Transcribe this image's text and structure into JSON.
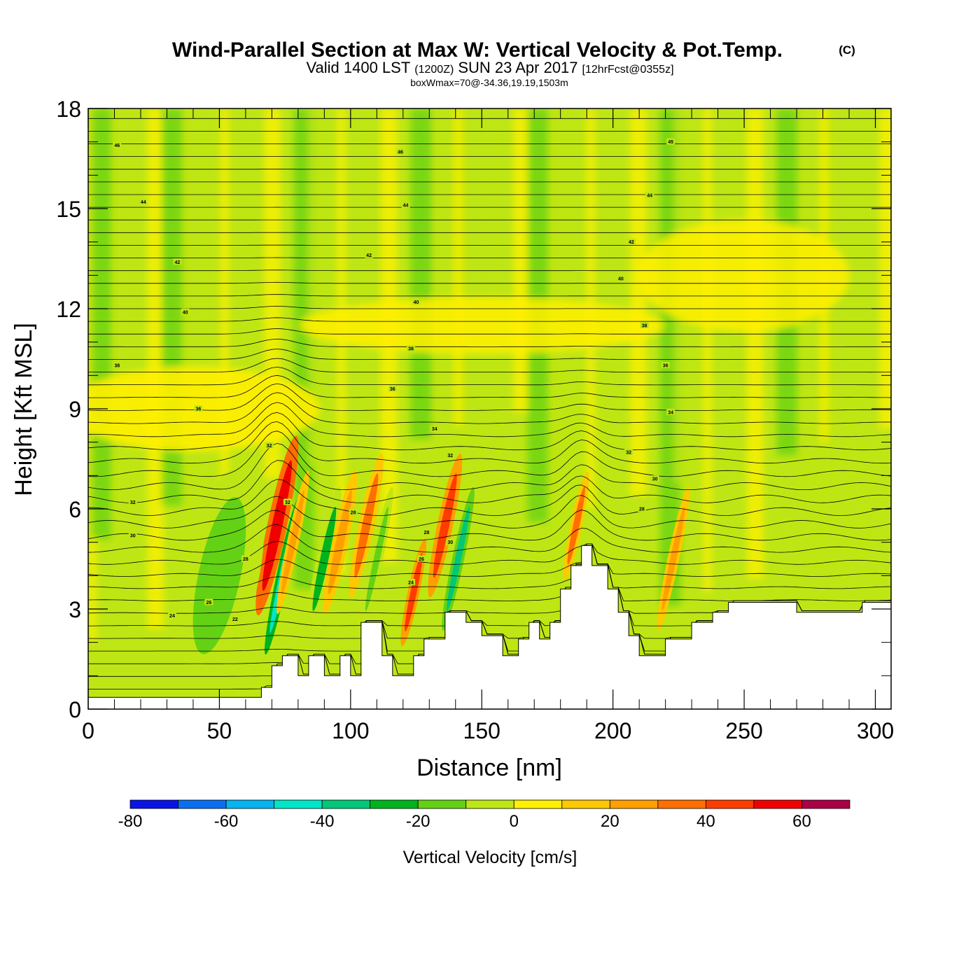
{
  "title": {
    "main": "Wind-Parallel Section at Max W: Vertical Velocity & Pot.Temp.",
    "copyright": "(C)",
    "valid_prefix": "Valid 1400 LST",
    "valid_utc": "(1200Z)",
    "valid_date": "SUN 23 Apr 2017",
    "forecast": "[12hrFcst@0355z]",
    "box_info": "boxWmax=70@-34.36,19.19,1503m"
  },
  "chart_data": {
    "type": "heatmap",
    "title": "Wind-Parallel Section at Max W: Vertical Velocity & Pot.Temp.",
    "xlabel": "Distance [nm]",
    "ylabel": "Height [Kft MSL]",
    "xlim": [
      0,
      306
    ],
    "ylim": [
      0,
      18
    ],
    "x_ticks": [
      0,
      50,
      100,
      150,
      200,
      250,
      300
    ],
    "y_ticks": [
      0,
      3,
      6,
      9,
      12,
      15,
      18
    ],
    "x_ticks_labels": [
      "0",
      "50",
      "100",
      "150",
      "200",
      "250",
      "300"
    ],
    "y_ticks_labels": [
      "0",
      "3",
      "6",
      "9",
      "12",
      "15",
      "18"
    ],
    "colorbar": {
      "label": "Vertical Velocity [cm/s]",
      "bounds": [
        -80,
        -70,
        -60,
        -50,
        -40,
        -30,
        -20,
        -10,
        0,
        10,
        20,
        30,
        40,
        50,
        60,
        70
      ],
      "tick_values": [
        -80,
        -60,
        -40,
        -20,
        0,
        20,
        40,
        60
      ],
      "tick_labels": [
        "-80",
        "-60",
        "-40",
        "-20",
        "0",
        "20",
        "40",
        "60"
      ],
      "colors": [
        "#0a14e6",
        "#0a6ef0",
        "#05b4f0",
        "#00e6c8",
        "#00c878",
        "#00b41e",
        "#64d214",
        "#bee614",
        "#fff000",
        "#ffc800",
        "#ffa000",
        "#ff6e00",
        "#ff3c00",
        "#f00000",
        "#aa0046"
      ]
    },
    "background_color": "#bee614",
    "terrain": [
      [
        0,
        0.35
      ],
      [
        10,
        0.35
      ],
      [
        20,
        0.35
      ],
      [
        30,
        0.35
      ],
      [
        40,
        0.35
      ],
      [
        50,
        0.35
      ],
      [
        60,
        0.35
      ],
      [
        66,
        0.35
      ],
      [
        66,
        0.65
      ],
      [
        70,
        0.65
      ],
      [
        70,
        1.3
      ],
      [
        74,
        1.3
      ],
      [
        74,
        1.6
      ],
      [
        80,
        1.6
      ],
      [
        80,
        1.0
      ],
      [
        84,
        1.0
      ],
      [
        84,
        1.6
      ],
      [
        90,
        1.6
      ],
      [
        90,
        1.0
      ],
      [
        96,
        1.0
      ],
      [
        96,
        1.6
      ],
      [
        100,
        1.6
      ],
      [
        100,
        1.0
      ],
      [
        104,
        1.0
      ],
      [
        104,
        2.6
      ],
      [
        112,
        2.6
      ],
      [
        112,
        1.6
      ],
      [
        116,
        1.6
      ],
      [
        116,
        1.0
      ],
      [
        124,
        1.0
      ],
      [
        124,
        1.6
      ],
      [
        128,
        1.6
      ],
      [
        128,
        2.1
      ],
      [
        136,
        2.1
      ],
      [
        136,
        2.9
      ],
      [
        144,
        2.9
      ],
      [
        144,
        2.6
      ],
      [
        150,
        2.6
      ],
      [
        150,
        2.2
      ],
      [
        158,
        2.2
      ],
      [
        158,
        1.6
      ],
      [
        164,
        1.6
      ],
      [
        164,
        2.1
      ],
      [
        168,
        2.1
      ],
      [
        168,
        2.6
      ],
      [
        172,
        2.6
      ],
      [
        172,
        2.1
      ],
      [
        176,
        2.1
      ],
      [
        176,
        2.6
      ],
      [
        180,
        2.6
      ],
      [
        180,
        3.6
      ],
      [
        184,
        3.6
      ],
      [
        184,
        4.3
      ],
      [
        188,
        4.3
      ],
      [
        188,
        4.9
      ],
      [
        192,
        4.9
      ],
      [
        192,
        4.3
      ],
      [
        198,
        4.3
      ],
      [
        198,
        3.6
      ],
      [
        202,
        3.6
      ],
      [
        202,
        2.9
      ],
      [
        206,
        2.9
      ],
      [
        206,
        2.2
      ],
      [
        210,
        2.2
      ],
      [
        210,
        1.6
      ],
      [
        220,
        1.6
      ],
      [
        220,
        2.1
      ],
      [
        230,
        2.1
      ],
      [
        230,
        2.6
      ],
      [
        238,
        2.6
      ],
      [
        238,
        2.9
      ],
      [
        244,
        2.9
      ],
      [
        244,
        3.2
      ],
      [
        270,
        3.2
      ],
      [
        270,
        2.9
      ],
      [
        295,
        2.9
      ],
      [
        295,
        3.2
      ],
      [
        306,
        3.2
      ]
    ],
    "w_anomalies": [
      {
        "x": 72,
        "y": 5.5,
        "rx": 2.5,
        "ry": 2.5,
        "value": 55
      },
      {
        "x": 74,
        "y": 4.0,
        "rx": 1.5,
        "ry": 2.2,
        "value": -45
      },
      {
        "x": 78,
        "y": 5.0,
        "rx": 1.5,
        "ry": 2.0,
        "value": 25
      },
      {
        "x": 90,
        "y": 4.5,
        "rx": 2.0,
        "ry": 2.0,
        "value": -25
      },
      {
        "x": 96,
        "y": 5.0,
        "rx": 2.0,
        "ry": 2.0,
        "value": 25
      },
      {
        "x": 106,
        "y": 5.5,
        "rx": 2.0,
        "ry": 2.0,
        "value": 30
      },
      {
        "x": 110,
        "y": 4.5,
        "rx": 1.5,
        "ry": 2.0,
        "value": -20
      },
      {
        "x": 124,
        "y": 3.5,
        "rx": 1.5,
        "ry": 1.5,
        "value": 45
      },
      {
        "x": 136,
        "y": 5.5,
        "rx": 2.0,
        "ry": 2.0,
        "value": 45
      },
      {
        "x": 141,
        "y": 4.5,
        "rx": 1.5,
        "ry": 2.0,
        "value": -35
      },
      {
        "x": 186,
        "y": 5.5,
        "rx": 1.5,
        "ry": 1.5,
        "value": 30
      },
      {
        "x": 223,
        "y": 4.5,
        "rx": 1.5,
        "ry": 2.0,
        "value": 20
      },
      {
        "x": 50,
        "y": 4.0,
        "rx": 10.0,
        "ry": 3.0,
        "value": -15
      }
    ],
    "theta_labels": [
      {
        "x": 11,
        "y": 16.9,
        "text": "46"
      },
      {
        "x": 119,
        "y": 16.7,
        "text": "46"
      },
      {
        "x": 222,
        "y": 17.0,
        "text": "45"
      },
      {
        "x": 21,
        "y": 15.2,
        "text": "44"
      },
      {
        "x": 121,
        "y": 15.1,
        "text": "44"
      },
      {
        "x": 214,
        "y": 15.4,
        "text": "44"
      },
      {
        "x": 34,
        "y": 13.4,
        "text": "42"
      },
      {
        "x": 107,
        "y": 13.6,
        "text": "42"
      },
      {
        "x": 207,
        "y": 14.0,
        "text": "42"
      },
      {
        "x": 37,
        "y": 11.9,
        "text": "40"
      },
      {
        "x": 125,
        "y": 12.2,
        "text": "40"
      },
      {
        "x": 203,
        "y": 12.9,
        "text": "40"
      },
      {
        "x": 11,
        "y": 10.3,
        "text": "38"
      },
      {
        "x": 123,
        "y": 10.8,
        "text": "38"
      },
      {
        "x": 212,
        "y": 11.5,
        "text": "38"
      },
      {
        "x": 42,
        "y": 9.0,
        "text": "36"
      },
      {
        "x": 116,
        "y": 9.6,
        "text": "36"
      },
      {
        "x": 220,
        "y": 10.3,
        "text": "36"
      },
      {
        "x": 132,
        "y": 8.4,
        "text": "34"
      },
      {
        "x": 222,
        "y": 8.9,
        "text": "34"
      },
      {
        "x": 69,
        "y": 7.9,
        "text": "32"
      },
      {
        "x": 206,
        "y": 7.7,
        "text": "32"
      },
      {
        "x": 17,
        "y": 6.2,
        "text": "32"
      },
      {
        "x": 138,
        "y": 7.6,
        "text": "32"
      },
      {
        "x": 216,
        "y": 6.9,
        "text": "30"
      },
      {
        "x": 17,
        "y": 5.2,
        "text": "30"
      },
      {
        "x": 76,
        "y": 6.2,
        "text": "32"
      },
      {
        "x": 101,
        "y": 5.9,
        "text": "28"
      },
      {
        "x": 211,
        "y": 6.0,
        "text": "28"
      },
      {
        "x": 129,
        "y": 5.3,
        "text": "28"
      },
      {
        "x": 138,
        "y": 5.0,
        "text": "30"
      },
      {
        "x": 60,
        "y": 4.5,
        "text": "28"
      },
      {
        "x": 127,
        "y": 4.5,
        "text": "26"
      },
      {
        "x": 123,
        "y": 3.8,
        "text": "24"
      },
      {
        "x": 46,
        "y": 3.2,
        "text": "26"
      },
      {
        "x": 32,
        "y": 2.8,
        "text": "24"
      },
      {
        "x": 56,
        "y": 2.7,
        "text": "22"
      }
    ]
  }
}
